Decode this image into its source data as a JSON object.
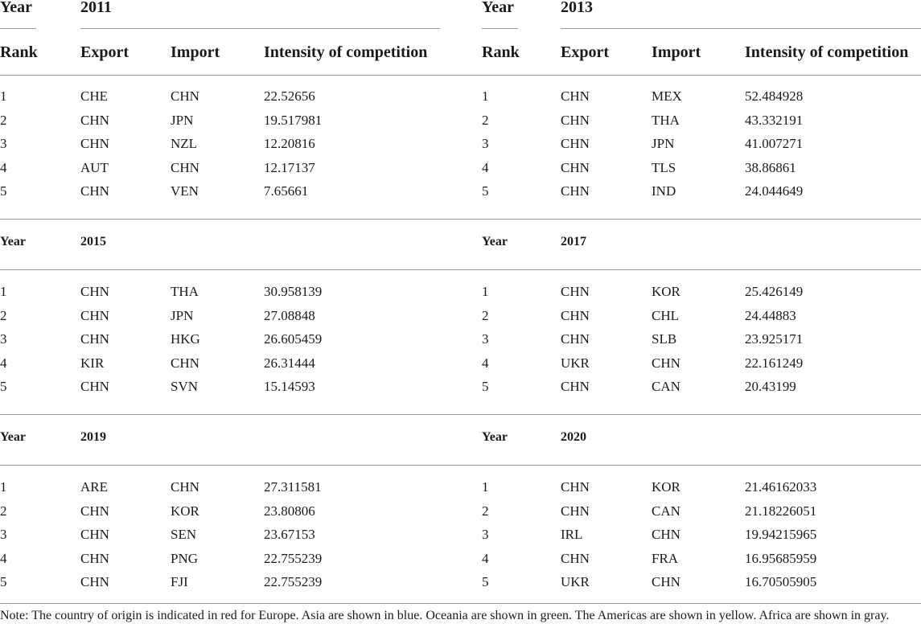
{
  "table": {
    "labels": {
      "year": "Year",
      "rank": "Rank",
      "export": "Export",
      "import": "Import",
      "intensity": "Intensity of competition"
    },
    "blocks": [
      {
        "left": {
          "year": "2011",
          "rows": [
            [
              "1",
              "CHE",
              "CHN",
              "22.52656"
            ],
            [
              "2",
              "CHN",
              "JPN",
              "19.517981"
            ],
            [
              "3",
              "CHN",
              "NZL",
              "12.20816"
            ],
            [
              "4",
              "AUT",
              "CHN",
              "12.17137"
            ],
            [
              "5",
              "CHN",
              "VEN",
              "7.65661"
            ]
          ]
        },
        "right": {
          "year": "2013",
          "rows": [
            [
              "1",
              "CHN",
              "MEX",
              "52.484928"
            ],
            [
              "2",
              "CHN",
              "THA",
              "43.332191"
            ],
            [
              "3",
              "CHN",
              "JPN",
              "41.007271"
            ],
            [
              "4",
              "CHN",
              "TLS",
              "38.86861"
            ],
            [
              "5",
              "CHN",
              "IND",
              "24.044649"
            ]
          ]
        }
      },
      {
        "left": {
          "year": "2015",
          "rows": [
            [
              "1",
              "CHN",
              "THA",
              "30.958139"
            ],
            [
              "2",
              "CHN",
              "JPN",
              "27.08848"
            ],
            [
              "3",
              "CHN",
              "HKG",
              "26.605459"
            ],
            [
              "4",
              "KIR",
              "CHN",
              "26.31444"
            ],
            [
              "5",
              "CHN",
              "SVN",
              "15.14593"
            ]
          ]
        },
        "right": {
          "year": "2017",
          "rows": [
            [
              "1",
              "CHN",
              "KOR",
              "25.426149"
            ],
            [
              "2",
              "CHN",
              "CHL",
              "24.44883"
            ],
            [
              "3",
              "CHN",
              "SLB",
              "23.925171"
            ],
            [
              "4",
              "UKR",
              "CHN",
              "22.161249"
            ],
            [
              "5",
              "CHN",
              "CAN",
              "20.43199"
            ]
          ]
        }
      },
      {
        "left": {
          "year": "2019",
          "rows": [
            [
              "1",
              "ARE",
              "CHN",
              "27.311581"
            ],
            [
              "2",
              "CHN",
              "KOR",
              "23.80806"
            ],
            [
              "3",
              "CHN",
              "SEN",
              "23.67153"
            ],
            [
              "4",
              "CHN",
              "PNG",
              "22.755239"
            ],
            [
              "5",
              "CHN",
              "FJI",
              "22.755239"
            ]
          ]
        },
        "right": {
          "year": "2020",
          "rows": [
            [
              "1",
              "CHN",
              "KOR",
              "21.46162033"
            ],
            [
              "2",
              "CHN",
              "CAN",
              "21.18226051"
            ],
            [
              "3",
              "IRL",
              "CHN",
              "19.94215965"
            ],
            [
              "4",
              "CHN",
              "FRA",
              "16.95685959"
            ],
            [
              "5",
              "UKR",
              "CHN",
              "16.70505905"
            ]
          ]
        }
      }
    ],
    "note": "Note: The country of origin is indicated in red for Europe. Asia are shown in blue. Oceania are shown in green. The Americas are shown in yellow. Africa are shown in gray."
  }
}
